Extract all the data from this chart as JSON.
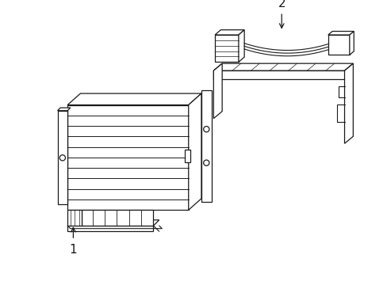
{
  "background_color": "#ffffff",
  "line_color": "#1a1a1a",
  "line_width": 0.9,
  "label_1": "1",
  "label_2": "2",
  "label_fontsize": 11,
  "fig_width": 4.89,
  "fig_height": 3.6,
  "dpi": 100
}
